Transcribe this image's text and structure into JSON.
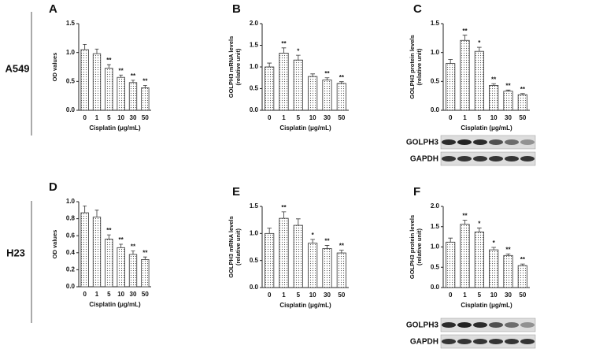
{
  "row_labels": [
    "A549",
    "H23"
  ],
  "chart_data": [
    {
      "type": "bar",
      "panel": "A",
      "ylabel": [
        "OD values"
      ],
      "xlabel": "Cisplatin (μg/mL)",
      "categories": [
        "0",
        "1",
        "5",
        "10",
        "30",
        "50"
      ],
      "values": [
        1.05,
        0.98,
        0.73,
        0.57,
        0.48,
        0.39
      ],
      "errors": [
        0.09,
        0.08,
        0.06,
        0.04,
        0.04,
        0.04
      ],
      "annotations": [
        null,
        null,
        "**",
        "**",
        "**",
        "**"
      ],
      "ylim": [
        0,
        1.5
      ],
      "yticks": [
        {
          "value": 0,
          "label": "0.0"
        },
        {
          "value": 0.5,
          "label": "0.5"
        },
        {
          "value": 1,
          "label": "1.0"
        },
        {
          "value": 1.5,
          "label": "1.5"
        }
      ]
    },
    {
      "type": "bar",
      "panel": "B",
      "ylabel": [
        "GOLPH3 mRNA levels",
        "(relative unit)"
      ],
      "xlabel": "Cisplatin (μg/mL)",
      "categories": [
        "0",
        "1",
        "5",
        "10",
        "30",
        "50"
      ],
      "values": [
        1.0,
        1.32,
        1.16,
        0.78,
        0.7,
        0.62
      ],
      "errors": [
        0.09,
        0.12,
        0.11,
        0.06,
        0.05,
        0.04
      ],
      "annotations": [
        null,
        "**",
        "*",
        null,
        "**",
        "**"
      ],
      "ylim": [
        0,
        2
      ],
      "yticks": [
        {
          "value": 0,
          "label": "0.0"
        },
        {
          "value": 0.5,
          "label": "0.5"
        },
        {
          "value": 1,
          "label": "1.0"
        },
        {
          "value": 1.5,
          "label": "1.5"
        },
        {
          "value": 2,
          "label": "2.0"
        }
      ]
    },
    {
      "type": "bar",
      "panel": "C",
      "ylabel": [
        "GOLPH3 protein levels",
        "(relative unit)"
      ],
      "xlabel": "Cisplatin (μg/mL)",
      "categories": [
        "0",
        "1",
        "5",
        "10",
        "30",
        "50"
      ],
      "values": [
        0.81,
        1.21,
        1.02,
        0.43,
        0.33,
        0.27
      ],
      "errors": [
        0.07,
        0.09,
        0.07,
        0.03,
        0.02,
        0.02
      ],
      "annotations": [
        null,
        "**",
        "*",
        "**",
        "**",
        "**"
      ],
      "ylim": [
        0,
        1.5
      ],
      "yticks": [
        {
          "value": 0,
          "label": "0.0"
        },
        {
          "value": 0.5,
          "label": "0.5"
        },
        {
          "value": 1,
          "label": "1.0"
        },
        {
          "value": 1.5,
          "label": "1.5"
        }
      ],
      "blot": [
        "GOLPH3",
        "GAPDH"
      ]
    },
    {
      "type": "bar",
      "panel": "D",
      "ylabel": [
        "OD values"
      ],
      "xlabel": "Cisplatin (μg/mL)",
      "categories": [
        "0",
        "1",
        "5",
        "10",
        "30",
        "50"
      ],
      "values": [
        0.87,
        0.82,
        0.56,
        0.46,
        0.38,
        0.32
      ],
      "errors": [
        0.08,
        0.08,
        0.05,
        0.04,
        0.04,
        0.03
      ],
      "annotations": [
        null,
        null,
        "**",
        "**",
        "**",
        "**"
      ],
      "ylim": [
        0,
        1
      ],
      "yticks": [
        {
          "value": 0,
          "label": "0.0"
        },
        {
          "value": 0.2,
          "label": "0.2"
        },
        {
          "value": 0.4,
          "label": "0.4"
        },
        {
          "value": 0.6,
          "label": "0.6"
        },
        {
          "value": 0.8,
          "label": "0.8"
        },
        {
          "value": 1,
          "label": "1.0"
        }
      ]
    },
    {
      "type": "bar",
      "panel": "E",
      "ylabel": [
        "GOLPH3 mRNA levels",
        "(relative unit)"
      ],
      "xlabel": "Cisplatin (μg/mL)",
      "categories": [
        "0",
        "1",
        "5",
        "10",
        "30",
        "50"
      ],
      "values": [
        1.0,
        1.28,
        1.15,
        0.82,
        0.72,
        0.64
      ],
      "errors": [
        0.1,
        0.12,
        0.12,
        0.07,
        0.06,
        0.05
      ],
      "annotations": [
        null,
        "**",
        null,
        "*",
        "**",
        "**"
      ],
      "ylim": [
        0,
        1.5
      ],
      "yticks": [
        {
          "value": 0,
          "label": "0.0"
        },
        {
          "value": 0.5,
          "label": "0.5"
        },
        {
          "value": 1,
          "label": "1.0"
        },
        {
          "value": 1.5,
          "label": "1.5"
        }
      ]
    },
    {
      "type": "bar",
      "panel": "F",
      "ylabel": [
        "GOLPH3 protein levels",
        "(relative unit)"
      ],
      "xlabel": "Cisplatin (μg/mL)",
      "categories": [
        "0",
        "1",
        "5",
        "10",
        "30",
        "50"
      ],
      "values": [
        1.12,
        1.56,
        1.37,
        0.93,
        0.79,
        0.54
      ],
      "errors": [
        0.1,
        0.1,
        0.1,
        0.06,
        0.04,
        0.04
      ],
      "annotations": [
        null,
        "**",
        "*",
        "*",
        "**",
        "**"
      ],
      "ylim": [
        0,
        2
      ],
      "yticks": [
        {
          "value": 0,
          "label": "0.0"
        },
        {
          "value": 0.5,
          "label": "0.5"
        },
        {
          "value": 1,
          "label": "1.0"
        },
        {
          "value": 1.5,
          "label": "1.5"
        },
        {
          "value": 2,
          "label": "2.0"
        }
      ],
      "blot": [
        "GOLPH3",
        "GAPDH"
      ]
    }
  ]
}
